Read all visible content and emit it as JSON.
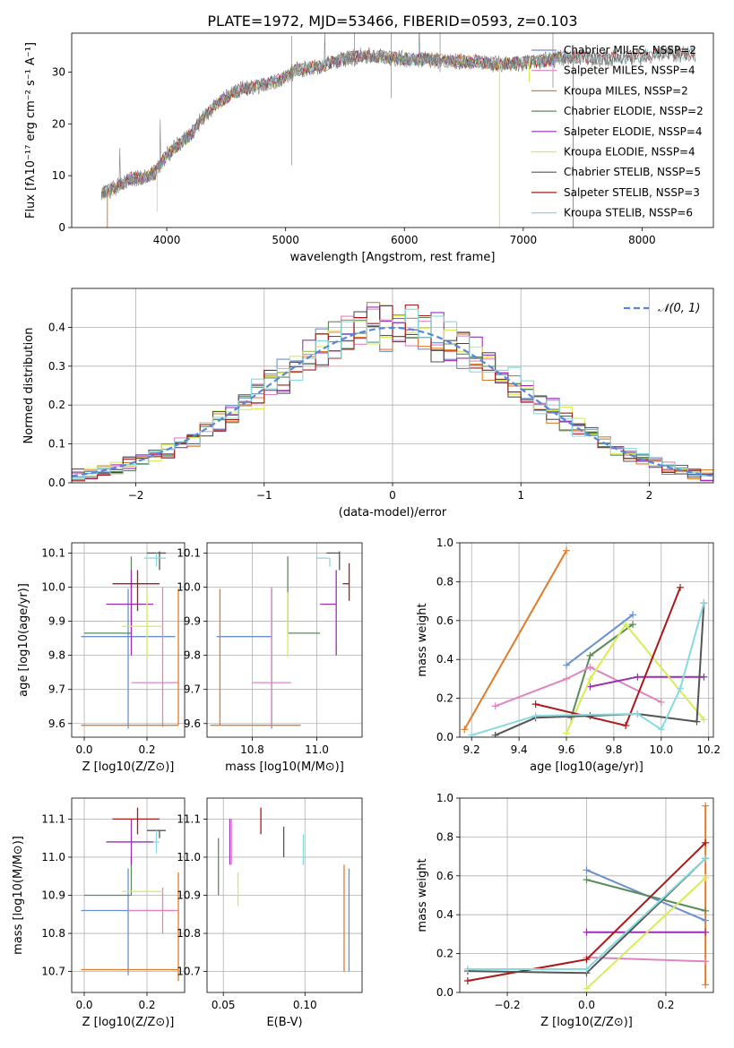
{
  "figure": {
    "title": "PLATE=1972, MJD=53466, FIBERID=0593, z=0.103"
  },
  "colors": {
    "chabrier_miles": "#6a8fd0",
    "salpeter_miles": "#de85c0",
    "kroupa_miles": "#e07b2a",
    "chabrier_elodie": "#5b8a5b",
    "salpeter_elodie": "#9b2fb5",
    "kroupa_elodie": "#d8ec55",
    "chabrier_stelib": "#555555",
    "salpeter_stelib": "#aa1a1a",
    "kroupa_stelib": "#86dade",
    "gauss": "#5588dd",
    "spectrum": "#808080",
    "grid": "#b0b0b0"
  },
  "chart_data": [
    {
      "type": "line",
      "id": "spectrum",
      "xlabel": "wavelength [Angstrom, rest frame]",
      "ylabel": "Flux [fλ10⁻¹⁷ erg cm⁻² s⁻¹ A⁻¹]",
      "xlim": [
        3200,
        8600
      ],
      "ylim": [
        0,
        37.5
      ],
      "xticks": [
        4000,
        5000,
        6000,
        7000,
        8000
      ],
      "yticks": [
        0,
        10,
        20,
        30
      ],
      "grid": false,
      "legend_placement": "right",
      "legend": [
        {
          "label": "Chabrier MILES, NSSP=2",
          "color_key": "chabrier_miles"
        },
        {
          "label": "Salpeter MILES, NSSP=4",
          "color_key": "salpeter_miles"
        },
        {
          "label": "Kroupa MILES, NSSP=2",
          "color_key": "kroupa_miles"
        },
        {
          "label": "Chabrier ELODIE, NSSP=2",
          "color_key": "chabrier_elodie"
        },
        {
          "label": "Salpeter ELODIE, NSSP=4",
          "color_key": "salpeter_elodie"
        },
        {
          "label": "Kroupa ELODIE, NSSP=4",
          "color_key": "kroupa_elodie"
        },
        {
          "label": "Chabrier STELIB, NSSP=5",
          "color_key": "chabrier_stelib"
        },
        {
          "label": "Salpeter STELIB, NSSP=3",
          "color_key": "salpeter_stelib"
        },
        {
          "label": "Kroupa STELIB, NSSP=6",
          "color_key": "kroupa_stelib"
        }
      ],
      "continuum": {
        "x": [
          3450,
          3600,
          3700,
          3800,
          3900,
          4000,
          4100,
          4200,
          4300,
          4400,
          4500,
          4600,
          4700,
          4800,
          4900,
          5000,
          5100,
          5200,
          5300,
          5400,
          5500,
          5600,
          5800,
          6000,
          6200,
          6400,
          6600,
          6800,
          7000,
          7200,
          7400,
          7600,
          7800,
          8000,
          8200,
          8400
        ],
        "y": [
          6.5,
          8,
          9.5,
          9.5,
          10.5,
          14,
          16,
          18,
          21,
          23.5,
          25,
          26.5,
          27,
          27.5,
          28,
          29,
          30.5,
          30.8,
          31,
          32,
          32.5,
          33,
          33,
          32.5,
          32.5,
          32,
          32,
          31.5,
          31.8,
          32.2,
          33,
          32.5,
          32.8,
          33,
          33.5,
          33.5
        ]
      },
      "drops": [
        {
          "x": 3500,
          "color_key": "kroupa_miles",
          "y": 0
        },
        {
          "x": 3920,
          "color_key": "kroupa_elodie",
          "y": 3
        },
        {
          "x": 6800,
          "color_key": "kroupa_elodie",
          "y": 0
        },
        {
          "x": 7420,
          "color_key": "kroupa_miles",
          "y": 0
        },
        {
          "x": 7050,
          "color_key": "kroupa_elodie",
          "y": 28
        }
      ]
    },
    {
      "type": "histogram",
      "id": "residuals",
      "xlabel": "(data-model)/error",
      "ylabel": "Normed distribution",
      "xlim": [
        -2.5,
        2.5
      ],
      "ylim": [
        0,
        0.5
      ],
      "xticks": [
        -2,
        -1,
        0,
        1,
        2
      ],
      "yticks": [
        0.0,
        0.1,
        0.2,
        0.3,
        0.4
      ],
      "grid": true,
      "bin_width": 0.1,
      "legend": [
        {
          "label": "𝒩(0, 1)",
          "color_key": "gauss"
        }
      ]
    },
    {
      "type": "errorbar",
      "id": "age-vs-z",
      "xlabel": "Z [log10(Z/Z⊙)]",
      "ylabel": "age  [log10(age/yr)]",
      "xlim": [
        -0.04,
        0.32
      ],
      "ylim": [
        9.56,
        10.13
      ],
      "xticks": [
        0.0,
        0.2
      ],
      "yticks": [
        9.6,
        9.7,
        9.8,
        9.9,
        10.0,
        10.1
      ],
      "grid": true,
      "points": [
        {
          "color_key": "chabrier_miles",
          "x": 0.14,
          "xerr": [
            0.15,
            0.15
          ],
          "y": 9.855,
          "yerr": [
            0.27,
            0.14
          ]
        },
        {
          "color_key": "salpeter_miles",
          "x": 0.25,
          "xerr": [
            0.1,
            0.05
          ],
          "y": 9.72,
          "yerr": [
            0.13,
            0.28
          ]
        },
        {
          "color_key": "kroupa_miles",
          "x": 0.3,
          "xerr": [
            0.31,
            0.0
          ],
          "y": 9.595,
          "yerr": [
            0.0,
            0.4
          ]
        },
        {
          "color_key": "chabrier_elodie",
          "x": 0.15,
          "xerr": [
            0.15,
            0.0
          ],
          "y": 9.865,
          "yerr": [
            0.0,
            0.225
          ]
        },
        {
          "color_key": "salpeter_elodie",
          "x": 0.15,
          "xerr": [
            0.08,
            0.07
          ],
          "y": 9.95,
          "yerr": [
            0.15,
            0.1
          ]
        },
        {
          "color_key": "kroupa_elodie",
          "x": 0.2,
          "xerr": [
            0.08,
            0.05
          ],
          "y": 9.885,
          "yerr": [
            0.09,
            0.1
          ]
        },
        {
          "color_key": "chabrier_stelib",
          "x": 0.24,
          "xerr": [
            0.04,
            0.02
          ],
          "y": 10.1,
          "yerr": [
            0.05,
            0.005
          ]
        },
        {
          "color_key": "salpeter_stelib",
          "x": 0.17,
          "xerr": [
            0.08,
            0.07
          ],
          "y": 10.01,
          "yerr": [
            0.08,
            0.04
          ]
        },
        {
          "color_key": "kroupa_stelib",
          "x": 0.23,
          "xerr": [
            0.04,
            0.03
          ],
          "y": 10.085,
          "yerr": [
            0.025,
            0.015
          ]
        }
      ]
    },
    {
      "type": "errorbar",
      "id": "age-vs-mass",
      "xlabel": "mass [log10(M/M⊙)]",
      "ylabel": "",
      "xlim": [
        10.66,
        11.14
      ],
      "ylim": [
        9.56,
        10.13
      ],
      "xticks": [
        10.8,
        11.0
      ],
      "yticks": [
        9.6,
        9.7,
        9.8,
        9.9,
        10.0,
        10.1
      ],
      "grid": true,
      "points": [
        {
          "color_key": "chabrier_miles",
          "x": 10.86,
          "xerr": [
            0.17,
            0.0
          ],
          "y": 9.855,
          "yerr": [
            0.27,
            0.14
          ]
        },
        {
          "color_key": "salpeter_miles",
          "x": 10.86,
          "xerr": [
            0.06,
            0.06
          ],
          "y": 9.72,
          "yerr": [
            0.13,
            0.28
          ]
        },
        {
          "color_key": "kroupa_miles",
          "x": 10.7,
          "xerr": [
            0.03,
            0.25
          ],
          "y": 9.595,
          "yerr": [
            0.0,
            0.4
          ]
        },
        {
          "color_key": "chabrier_elodie",
          "x": 10.91,
          "xerr": [
            0.0,
            0.1
          ],
          "y": 9.865,
          "yerr": [
            0.0,
            0.225
          ]
        },
        {
          "color_key": "salpeter_elodie",
          "x": 11.06,
          "xerr": [
            0.05,
            0.0
          ],
          "y": 9.95,
          "yerr": [
            0.15,
            0.1
          ]
        },
        {
          "color_key": "kroupa_elodie",
          "x": 10.91,
          "xerr": [
            0.0,
            0.0
          ],
          "y": 9.885,
          "yerr": [
            0.09,
            0.1
          ]
        },
        {
          "color_key": "chabrier_stelib",
          "x": 11.07,
          "xerr": [
            0.04,
            0.0
          ],
          "y": 10.1,
          "yerr": [
            0.05,
            0.005
          ]
        },
        {
          "color_key": "salpeter_stelib",
          "x": 11.1,
          "xerr": [
            0.02,
            0.0
          ],
          "y": 10.01,
          "yerr": [
            0.05,
            0.06
          ]
        },
        {
          "color_key": "kroupa_stelib",
          "x": 11.04,
          "xerr": [
            0.04,
            0.0
          ],
          "y": 10.085,
          "yerr": [
            0.025,
            0.0
          ]
        }
      ]
    },
    {
      "type": "line",
      "id": "weight-vs-age",
      "xlabel": "age  [log10(age/yr)]",
      "ylabel": "mass weight",
      "xlim": [
        9.15,
        10.22
      ],
      "ylim": [
        0.0,
        1.0
      ],
      "xticks": [
        9.2,
        9.4,
        9.6,
        9.8,
        10.0,
        10.2
      ],
      "yticks": [
        0.0,
        0.2,
        0.4,
        0.6,
        0.8,
        1.0
      ],
      "grid": true,
      "series": [
        {
          "color_key": "kroupa_miles",
          "x": [
            9.17,
            9.6
          ],
          "y": [
            0.04,
            0.96
          ]
        },
        {
          "color_key": "chabrier_miles",
          "x": [
            9.6,
            9.88
          ],
          "y": [
            0.37,
            0.63
          ]
        },
        {
          "color_key": "chabrier_elodie",
          "x": [
            9.62,
            9.7,
            9.88
          ],
          "y": [
            0.1,
            0.42,
            0.58
          ]
        },
        {
          "color_key": "salpeter_miles",
          "x": [
            9.3,
            9.6,
            9.7,
            10.0
          ],
          "y": [
            0.16,
            0.3,
            0.36,
            0.18
          ]
        },
        {
          "color_key": "salpeter_elodie",
          "x": [
            9.7,
            9.9,
            10.18
          ],
          "y": [
            0.26,
            0.31,
            0.31
          ]
        },
        {
          "color_key": "kroupa_elodie",
          "x": [
            9.6,
            9.7,
            9.85,
            10.18
          ],
          "y": [
            0.02,
            0.3,
            0.58,
            0.09
          ]
        },
        {
          "color_key": "salpeter_stelib",
          "x": [
            9.47,
            9.85,
            10.08
          ],
          "y": [
            0.17,
            0.06,
            0.77
          ]
        },
        {
          "color_key": "chabrier_stelib",
          "x": [
            9.3,
            9.47,
            9.7,
            9.9,
            10.15,
            10.18
          ],
          "y": [
            0.01,
            0.1,
            0.11,
            0.12,
            0.08,
            0.69
          ]
        },
        {
          "color_key": "kroupa_stelib",
          "x": [
            9.2,
            9.47,
            9.9,
            10.0,
            10.08,
            10.18
          ],
          "y": [
            0.01,
            0.11,
            0.12,
            0.04,
            0.25,
            0.69
          ]
        }
      ]
    },
    {
      "type": "errorbar",
      "id": "mass-vs-z",
      "xlabel": "Z [log10(Z/Z⊙)]",
      "ylabel": "mass [log10(M/M⊙)]",
      "xlim": [
        -0.04,
        0.32
      ],
      "ylim": [
        10.645,
        11.155
      ],
      "xticks": [
        0.0,
        0.2
      ],
      "yticks": [
        10.7,
        10.8,
        10.9,
        11.0,
        11.1
      ],
      "grid": true,
      "points": [
        {
          "color_key": "chabrier_miles",
          "x": 0.14,
          "xerr": [
            0.15,
            0.15
          ],
          "y": 10.86,
          "yerr": [
            0.17,
            0.11
          ]
        },
        {
          "color_key": "salpeter_miles",
          "x": 0.25,
          "xerr": [
            0.11,
            0.05
          ],
          "y": 10.86,
          "yerr": [
            0.06,
            0.06
          ]
        },
        {
          "color_key": "kroupa_miles",
          "x": 0.3,
          "xerr": [
            0.31,
            0.0
          ],
          "y": 10.705,
          "yerr": [
            0.03,
            0.255
          ]
        },
        {
          "color_key": "chabrier_elodie",
          "x": 0.15,
          "xerr": [
            0.15,
            0.0
          ],
          "y": 10.9,
          "yerr": [
            0.0,
            0.1
          ]
        },
        {
          "color_key": "salpeter_elodie",
          "x": 0.15,
          "xerr": [
            0.08,
            0.07
          ],
          "y": 11.04,
          "yerr": [
            0.06,
            0.06
          ]
        },
        {
          "color_key": "kroupa_elodie",
          "x": 0.2,
          "xerr": [
            0.08,
            0.05
          ],
          "y": 10.91,
          "yerr": [
            0.0,
            0.0
          ]
        },
        {
          "color_key": "chabrier_stelib",
          "x": 0.24,
          "xerr": [
            0.04,
            0.02
          ],
          "y": 11.07,
          "yerr": [
            0.02,
            0.0
          ]
        },
        {
          "color_key": "salpeter_stelib",
          "x": 0.17,
          "xerr": [
            0.08,
            0.07
          ],
          "y": 11.1,
          "yerr": [
            0.04,
            0.03
          ]
        },
        {
          "color_key": "kroupa_stelib",
          "x": 0.23,
          "xerr": [
            0.01,
            0.01
          ],
          "y": 11.04,
          "yerr": [
            0.03,
            0.03
          ]
        }
      ]
    },
    {
      "type": "errorbar",
      "id": "mass-vs-ebv",
      "xlabel": "E(B-V)",
      "ylabel": "",
      "xlim": [
        0.04,
        0.135
      ],
      "ylim": [
        10.645,
        11.155
      ],
      "xticks": [
        0.05,
        0.1
      ],
      "yticks": [
        10.7,
        10.8,
        10.9,
        11.0,
        11.1
      ],
      "grid": true,
      "points": [
        {
          "color_key": "chabrier_miles",
          "x": 0.127,
          "y": 10.83,
          "yerr": [
            0.13,
            0.14
          ]
        },
        {
          "color_key": "salpeter_miles",
          "x": 0.055,
          "y": 11.04,
          "yerr": [
            0.06,
            0.06
          ]
        },
        {
          "color_key": "kroupa_miles",
          "x": 0.124,
          "y": 10.83,
          "yerr": [
            0.13,
            0.15
          ]
        },
        {
          "color_key": "chabrier_elodie",
          "x": 0.047,
          "y": 10.97,
          "yerr": [
            0.07,
            0.08
          ]
        },
        {
          "color_key": "salpeter_elodie",
          "x": 0.054,
          "y": 11.03,
          "yerr": [
            0.05,
            0.07
          ]
        },
        {
          "color_key": "kroupa_elodie",
          "x": 0.059,
          "y": 10.91,
          "yerr": [
            0.04,
            0.05
          ]
        },
        {
          "color_key": "chabrier_stelib",
          "x": 0.087,
          "y": 11.04,
          "yerr": [
            0.04,
            0.04
          ]
        },
        {
          "color_key": "salpeter_stelib",
          "x": 0.073,
          "y": 11.09,
          "yerr": [
            0.03,
            0.04
          ]
        },
        {
          "color_key": "kroupa_stelib",
          "x": 0.099,
          "y": 11.02,
          "yerr": [
            0.04,
            0.04
          ]
        }
      ]
    },
    {
      "type": "line",
      "id": "weight-vs-z",
      "xlabel": "Z [log10(Z/Z⊙)]",
      "ylabel": "mass weight",
      "xlim": [
        -0.32,
        0.32
      ],
      "ylim": [
        0.0,
        1.0
      ],
      "xticks": [
        -0.2,
        0.0,
        0.2
      ],
      "yticks": [
        0.0,
        0.2,
        0.4,
        0.6,
        0.8,
        1.0
      ],
      "grid": true,
      "series": [
        {
          "color_key": "kroupa_miles",
          "x": [
            0.3,
            0.3
          ],
          "y": [
            0.04,
            0.96
          ]
        },
        {
          "color_key": "chabrier_miles",
          "x": [
            0.0,
            0.3
          ],
          "y": [
            0.63,
            0.37
          ]
        },
        {
          "color_key": "chabrier_elodie",
          "x": [
            0.0,
            0.3
          ],
          "y": [
            0.58,
            0.42
          ]
        },
        {
          "color_key": "salpeter_miles",
          "x": [
            0.0,
            0.3
          ],
          "y": [
            0.18,
            0.16
          ]
        },
        {
          "color_key": "salpeter_elodie",
          "x": [
            0.0,
            0.3
          ],
          "y": [
            0.31,
            0.31
          ]
        },
        {
          "color_key": "kroupa_elodie",
          "x": [
            0.0,
            0.3
          ],
          "y": [
            0.02,
            0.59
          ]
        },
        {
          "color_key": "salpeter_stelib",
          "x": [
            -0.3,
            0.0,
            0.3
          ],
          "y": [
            0.06,
            0.17,
            0.77
          ]
        },
        {
          "color_key": "chabrier_stelib",
          "x": [
            -0.3,
            0.0,
            0.3
          ],
          "y": [
            0.11,
            0.1,
            0.69
          ]
        },
        {
          "color_key": "kroupa_stelib",
          "x": [
            -0.3,
            0.0,
            0.3
          ],
          "y": [
            0.12,
            0.12,
            0.69
          ]
        }
      ]
    }
  ]
}
